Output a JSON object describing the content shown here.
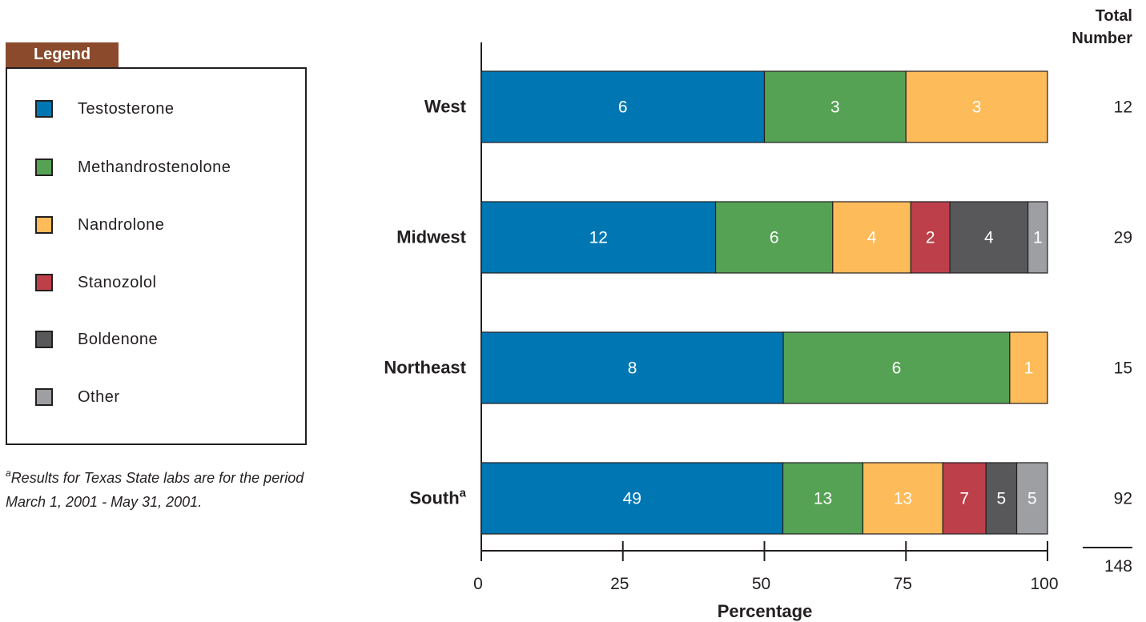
{
  "legend": {
    "title": "Legend",
    "items": [
      {
        "label": "Testosterone",
        "color": "#0077b3"
      },
      {
        "label": "Methandrostenolone",
        "color": "#56a255"
      },
      {
        "label": "Nandrolone",
        "color": "#fdbb5a"
      },
      {
        "label": "Stanozolol",
        "color": "#bd3f4a"
      },
      {
        "label": "Boldenone",
        "color": "#58585a"
      },
      {
        "label": "Other",
        "color": "#9d9fa2"
      }
    ]
  },
  "footnote": {
    "marker": "a",
    "line1": "Results for Texas State labs are for the period",
    "line2": "March 1, 2001 - May 31, 2001."
  },
  "chart_data": {
    "type": "bar",
    "orientation": "horizontal",
    "stacked": true,
    "categories": [
      "West",
      "Midwest",
      "Northeast",
      "South"
    ],
    "category_superscripts": [
      "",
      "",
      "",
      "a"
    ],
    "series": [
      {
        "name": "Testosterone",
        "values": [
          6,
          12,
          8,
          49
        ],
        "color": "#0077b3",
        "label_color": "#ffffff"
      },
      {
        "name": "Methandrostenolone",
        "values": [
          3,
          6,
          6,
          13
        ],
        "color": "#56a255",
        "label_color": "#ffffff"
      },
      {
        "name": "Nandrolone",
        "values": [
          3,
          4,
          1,
          13
        ],
        "color": "#fdbb5a",
        "label_color": "#ffffff"
      },
      {
        "name": "Stanozolol",
        "values": [
          0,
          2,
          0,
          7
        ],
        "color": "#bd3f4a",
        "label_color": "#ffffff"
      },
      {
        "name": "Boldenone",
        "values": [
          0,
          4,
          0,
          5
        ],
        "color": "#58585a",
        "label_color": "#ffffff"
      },
      {
        "name": "Other",
        "values": [
          0,
          1,
          0,
          5
        ],
        "color": "#9d9fa2",
        "label_color": "#ffffff"
      }
    ],
    "totals": [
      12,
      29,
      15,
      92
    ],
    "grand_total": 148,
    "totals_header": [
      "Total",
      "Number"
    ],
    "xlabel": "Percentage",
    "xlim": [
      0,
      100
    ],
    "xticks": [
      0,
      25,
      50,
      75,
      100
    ],
    "grid": false
  }
}
